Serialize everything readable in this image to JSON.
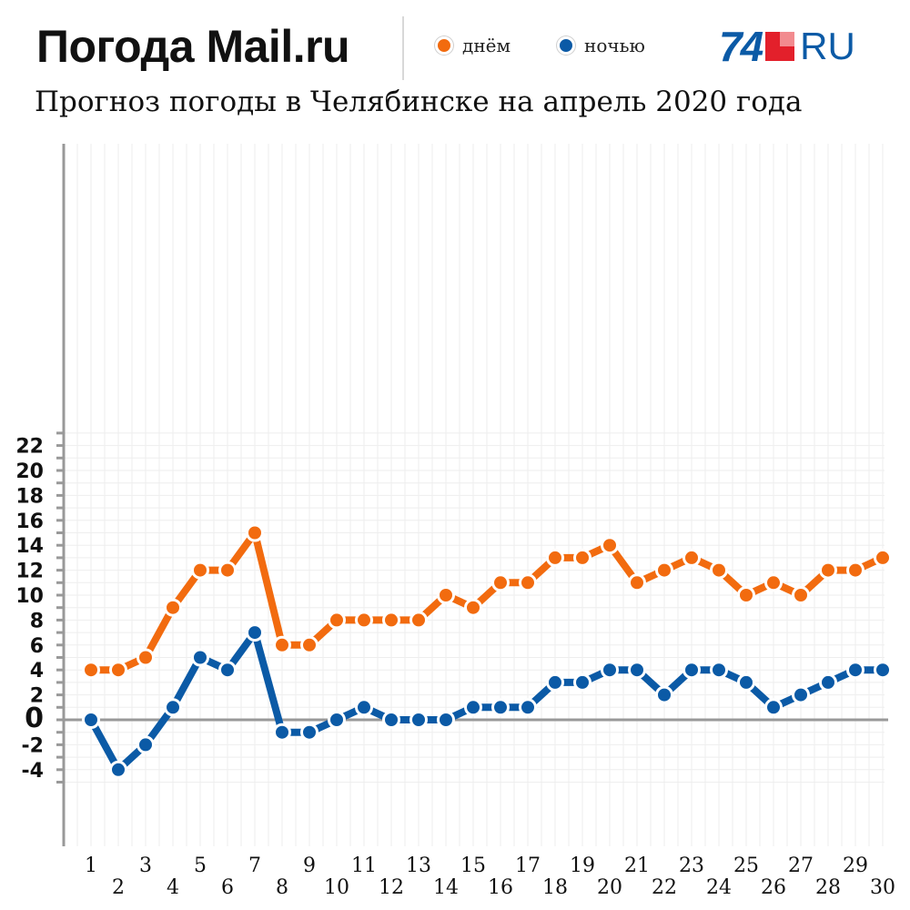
{
  "header": {
    "brand": "Погода Mail.ru",
    "subtitle": "Прогноз погоды в Челябинске на апрель 2020 года",
    "logo_number": "74",
    "logo_suffix": "RU"
  },
  "colors": {
    "day": "#f26b0f",
    "night": "#0b5aa6",
    "axis": "#999999",
    "grid": "#eeeeee",
    "logo": "#0b5aa6",
    "logo_red": "#e3202b",
    "logo_pink": "#f28b8f"
  },
  "chart_data": {
    "type": "line",
    "title": "Прогноз погоды в Челябинске на апрель 2020 года",
    "xlabel": "",
    "ylabel": "",
    "x": [
      1,
      2,
      3,
      4,
      5,
      6,
      7,
      8,
      9,
      10,
      11,
      12,
      13,
      14,
      15,
      16,
      17,
      18,
      19,
      20,
      21,
      22,
      23,
      24,
      25,
      26,
      27,
      28,
      29,
      30
    ],
    "x_tick_labels": [
      "1",
      "2",
      "3",
      "4",
      "5",
      "6",
      "7",
      "8",
      "9",
      "10",
      "11",
      "12",
      "13",
      "14",
      "15",
      "16",
      "17",
      "18",
      "19",
      "20",
      "21",
      "22",
      "23",
      "24",
      "25",
      "26",
      "27",
      "28",
      "29",
      "30"
    ],
    "ylim": [
      -5,
      23
    ],
    "y_ticks": [
      -4,
      -2,
      0,
      2,
      4,
      6,
      8,
      10,
      12,
      14,
      16,
      18,
      20,
      22
    ],
    "y_tick_labels": [
      "-4",
      "-2",
      "0",
      "2",
      "4",
      "6",
      "8",
      "10",
      "12",
      "14",
      "16",
      "18",
      "20",
      "22"
    ],
    "grid": true,
    "legend_position": "top",
    "series": [
      {
        "name": "днём",
        "color": "#f26b0f",
        "values": [
          4,
          4,
          5,
          9,
          12,
          12,
          15,
          6,
          6,
          8,
          8,
          8,
          8,
          10,
          9,
          11,
          11,
          13,
          13,
          14,
          11,
          12,
          13,
          12,
          10,
          11,
          10,
          12,
          12,
          13
        ]
      },
      {
        "name": "ночью",
        "color": "#0b5aa6",
        "values": [
          0,
          -4,
          -2,
          1,
          5,
          4,
          7,
          -1,
          -1,
          0,
          1,
          0,
          0,
          0,
          1,
          1,
          1,
          3,
          3,
          4,
          4,
          2,
          4,
          4,
          3,
          1,
          2,
          3,
          4,
          4
        ]
      }
    ]
  }
}
